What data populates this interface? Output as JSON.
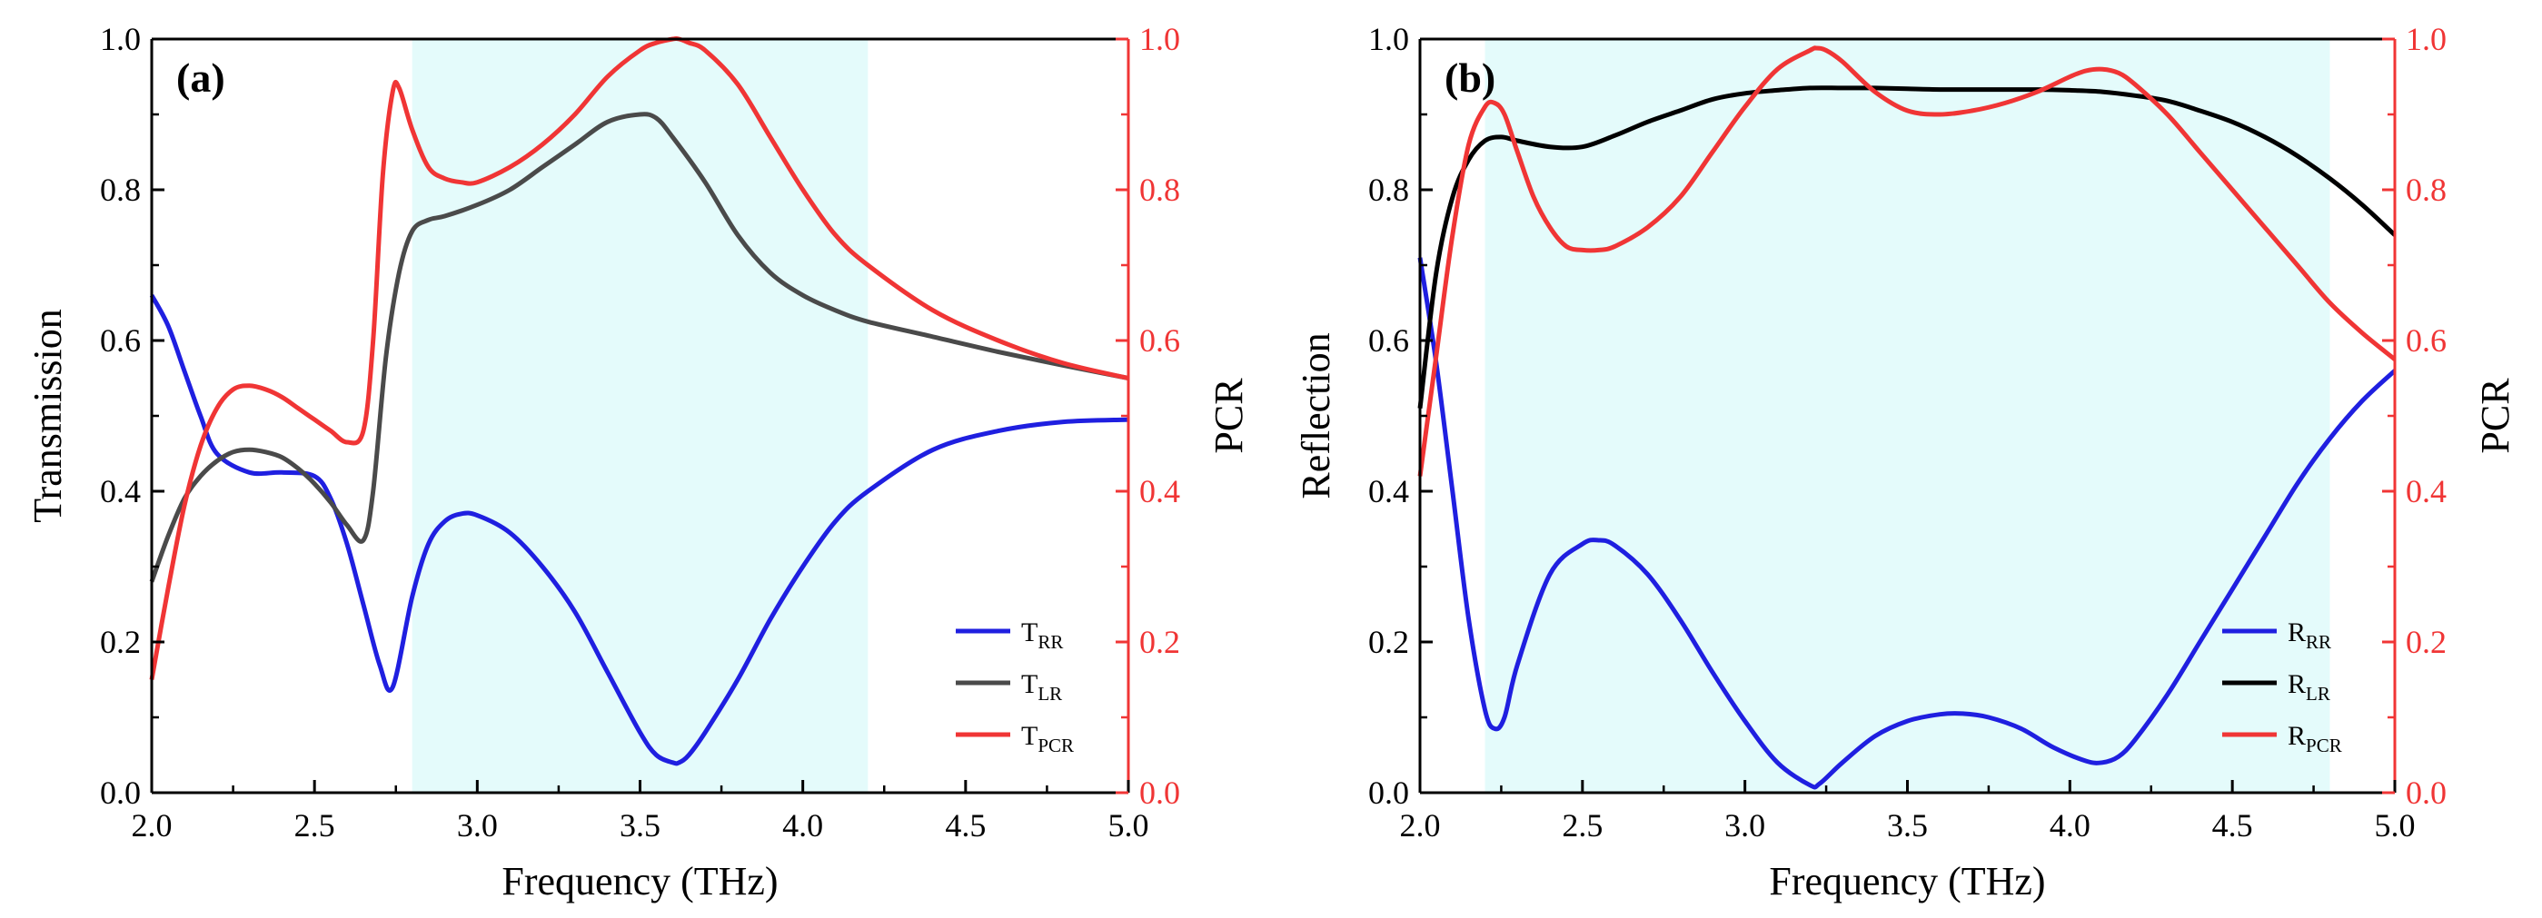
{
  "chart_data": [
    {
      "type": "line",
      "panel_label": "(a)",
      "xlabel": "Frequency (THz)",
      "ylabel": "Transmission",
      "ylabel_right": "PCR",
      "xlim": [
        2.0,
        5.0
      ],
      "ylim": [
        0,
        1.0
      ],
      "ylim_right": [
        0,
        1.0
      ],
      "xticks": [
        "2.0",
        "2.5",
        "3.0",
        "3.5",
        "4.0",
        "4.5",
        "5.0"
      ],
      "yticks": [
        "0.0",
        "0.2",
        "0.4",
        "0.6",
        "0.8",
        "1.0"
      ],
      "yticks_right": [
        "0.0",
        "0.2",
        "0.4",
        "0.6",
        "0.8",
        "1.0"
      ],
      "shaded_band": [
        2.8,
        4.2
      ],
      "legend_position": "bottom-right",
      "series": [
        {
          "name": "T",
          "sub": "RR",
          "color": "#1f1fe0",
          "x": [
            2.0,
            2.05,
            2.1,
            2.15,
            2.2,
            2.3,
            2.4,
            2.5,
            2.55,
            2.6,
            2.65,
            2.7,
            2.74,
            2.8,
            2.85,
            2.9,
            2.95,
            3.0,
            3.1,
            3.2,
            3.3,
            3.4,
            3.5,
            3.55,
            3.6,
            3.62,
            3.65,
            3.7,
            3.8,
            3.9,
            4.0,
            4.1,
            4.2,
            4.4,
            4.6,
            4.8,
            5.0
          ],
          "values": [
            0.66,
            0.62,
            0.56,
            0.5,
            0.45,
            0.425,
            0.425,
            0.42,
            0.39,
            0.33,
            0.25,
            0.17,
            0.14,
            0.26,
            0.33,
            0.36,
            0.37,
            0.368,
            0.345,
            0.3,
            0.24,
            0.16,
            0.08,
            0.05,
            0.04,
            0.04,
            0.05,
            0.08,
            0.15,
            0.23,
            0.3,
            0.36,
            0.4,
            0.455,
            0.48,
            0.492,
            0.495
          ]
        },
        {
          "name": "T",
          "sub": "LR",
          "color": "#4a4a4a",
          "x": [
            2.0,
            2.05,
            2.1,
            2.15,
            2.2,
            2.25,
            2.3,
            2.35,
            2.4,
            2.45,
            2.5,
            2.55,
            2.6,
            2.65,
            2.68,
            2.72,
            2.76,
            2.8,
            2.85,
            2.9,
            3.0,
            3.1,
            3.2,
            3.3,
            3.4,
            3.5,
            3.55,
            3.6,
            3.7,
            3.8,
            3.9,
            4.0,
            4.1,
            4.2,
            4.4,
            4.6,
            4.8,
            5.0
          ],
          "values": [
            0.28,
            0.34,
            0.39,
            0.42,
            0.44,
            0.452,
            0.455,
            0.452,
            0.445,
            0.43,
            0.41,
            0.385,
            0.355,
            0.335,
            0.4,
            0.58,
            0.69,
            0.745,
            0.76,
            0.765,
            0.78,
            0.8,
            0.83,
            0.86,
            0.89,
            0.9,
            0.895,
            0.87,
            0.81,
            0.74,
            0.69,
            0.66,
            0.64,
            0.625,
            0.605,
            0.585,
            0.567,
            0.55
          ]
        },
        {
          "name": "T",
          "sub": "PCR",
          "color": "#f03535",
          "x": [
            2.0,
            2.05,
            2.1,
            2.15,
            2.2,
            2.25,
            2.3,
            2.35,
            2.4,
            2.45,
            2.5,
            2.55,
            2.6,
            2.65,
            2.68,
            2.71,
            2.74,
            2.76,
            2.8,
            2.85,
            2.9,
            2.95,
            3.0,
            3.1,
            3.2,
            3.3,
            3.4,
            3.5,
            3.55,
            3.6,
            3.62,
            3.65,
            3.7,
            3.8,
            3.9,
            4.0,
            4.1,
            4.2,
            4.4,
            4.6,
            4.8,
            5.0
          ],
          "values": [
            0.15,
            0.27,
            0.38,
            0.46,
            0.51,
            0.535,
            0.54,
            0.535,
            0.525,
            0.51,
            0.495,
            0.48,
            0.465,
            0.48,
            0.6,
            0.82,
            0.93,
            0.935,
            0.88,
            0.83,
            0.815,
            0.81,
            0.81,
            0.83,
            0.86,
            0.9,
            0.95,
            0.985,
            0.995,
            1.0,
            1.0,
            0.995,
            0.985,
            0.94,
            0.87,
            0.8,
            0.74,
            0.7,
            0.64,
            0.6,
            0.57,
            0.55
          ]
        }
      ]
    },
    {
      "type": "line",
      "panel_label": "(b)",
      "xlabel": "Frequency (THz)",
      "ylabel": "Reflection",
      "ylabel_right": "PCR",
      "xlim": [
        2.0,
        5.0
      ],
      "ylim": [
        0,
        1.0
      ],
      "ylim_right": [
        0,
        1.0
      ],
      "xticks": [
        "2.0",
        "2.5",
        "3.0",
        "3.5",
        "4.0",
        "4.5",
        "5.0"
      ],
      "yticks": [
        "0.0",
        "0.2",
        "0.4",
        "0.6",
        "0.8",
        "1.0"
      ],
      "yticks_right": [
        "0.0",
        "0.2",
        "0.4",
        "0.6",
        "0.8",
        "1.0"
      ],
      "shaded_band": [
        2.2,
        4.8
      ],
      "legend_position": "bottom-right",
      "series": [
        {
          "name": "R",
          "sub": "RR",
          "color": "#1f1fe0",
          "x": [
            2.0,
            2.05,
            2.1,
            2.15,
            2.2,
            2.23,
            2.26,
            2.3,
            2.4,
            2.5,
            2.55,
            2.6,
            2.7,
            2.8,
            2.9,
            3.0,
            3.1,
            3.2,
            3.23,
            3.3,
            3.4,
            3.5,
            3.6,
            3.67,
            3.75,
            3.85,
            3.95,
            4.05,
            4.1,
            4.15,
            4.2,
            4.3,
            4.4,
            4.5,
            4.6,
            4.7,
            4.8,
            4.9,
            5.0
          ],
          "values": [
            0.71,
            0.57,
            0.4,
            0.23,
            0.11,
            0.085,
            0.1,
            0.17,
            0.29,
            0.33,
            0.335,
            0.328,
            0.29,
            0.23,
            0.16,
            0.095,
            0.04,
            0.01,
            0.012,
            0.04,
            0.075,
            0.095,
            0.104,
            0.105,
            0.1,
            0.085,
            0.06,
            0.042,
            0.04,
            0.048,
            0.07,
            0.13,
            0.2,
            0.27,
            0.34,
            0.41,
            0.47,
            0.52,
            0.56
          ]
        },
        {
          "name": "R",
          "sub": "LR",
          "color": "#000000",
          "x": [
            2.0,
            2.05,
            2.1,
            2.15,
            2.2,
            2.25,
            2.3,
            2.4,
            2.5,
            2.6,
            2.7,
            2.8,
            2.9,
            3.0,
            3.1,
            3.2,
            3.3,
            3.4,
            3.5,
            3.6,
            3.7,
            3.8,
            3.9,
            4.0,
            4.1,
            4.2,
            4.3,
            4.4,
            4.5,
            4.6,
            4.7,
            4.8,
            4.9,
            5.0
          ],
          "values": [
            0.51,
            0.69,
            0.79,
            0.84,
            0.865,
            0.87,
            0.865,
            0.857,
            0.857,
            0.872,
            0.89,
            0.905,
            0.92,
            0.928,
            0.932,
            0.935,
            0.935,
            0.935,
            0.934,
            0.933,
            0.933,
            0.933,
            0.933,
            0.932,
            0.93,
            0.925,
            0.918,
            0.905,
            0.89,
            0.87,
            0.845,
            0.815,
            0.78,
            0.74
          ]
        },
        {
          "name": "R",
          "sub": "PCR",
          "color": "#f03535",
          "x": [
            2.0,
            2.05,
            2.1,
            2.15,
            2.2,
            2.23,
            2.26,
            2.3,
            2.35,
            2.4,
            2.45,
            2.5,
            2.55,
            2.6,
            2.7,
            2.8,
            2.9,
            3.0,
            3.1,
            3.2,
            3.22,
            3.25,
            3.3,
            3.4,
            3.5,
            3.6,
            3.7,
            3.8,
            3.9,
            4.0,
            4.05,
            4.1,
            4.15,
            4.2,
            4.3,
            4.4,
            4.5,
            4.6,
            4.7,
            4.8,
            4.9,
            5.0
          ],
          "values": [
            0.42,
            0.58,
            0.74,
            0.86,
            0.91,
            0.915,
            0.9,
            0.85,
            0.79,
            0.75,
            0.725,
            0.72,
            0.72,
            0.725,
            0.75,
            0.79,
            0.85,
            0.91,
            0.96,
            0.985,
            0.988,
            0.985,
            0.97,
            0.93,
            0.905,
            0.9,
            0.905,
            0.915,
            0.93,
            0.95,
            0.958,
            0.96,
            0.955,
            0.94,
            0.9,
            0.85,
            0.8,
            0.75,
            0.7,
            0.65,
            0.61,
            0.575
          ]
        }
      ]
    }
  ]
}
